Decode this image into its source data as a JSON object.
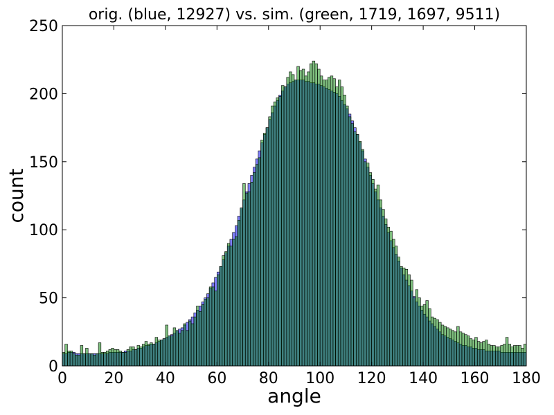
{
  "chart_data": {
    "type": "bar",
    "title": "orig. (blue, 12927) vs. sim. (green, 1719, 1697, 9511)",
    "xlabel": "angle",
    "ylabel": "count",
    "xlim": [
      0,
      180
    ],
    "ylim": [
      0,
      250
    ],
    "xticks": [
      "0",
      "20",
      "40",
      "60",
      "80",
      "100",
      "120",
      "140",
      "160",
      "180"
    ],
    "yticks": [
      "0",
      "50",
      "100",
      "150",
      "200",
      "250"
    ],
    "bin_width": 1,
    "bin_start": 0,
    "grid": false,
    "series": [
      {
        "color": "#0000ff",
        "values": [
          9,
          9,
          10,
          10,
          10,
          9,
          9,
          9,
          9,
          9,
          9,
          9,
          9,
          9,
          9,
          9,
          9,
          9,
          10,
          10,
          10,
          10,
          10,
          10,
          11,
          11,
          11,
          12,
          12,
          13,
          13,
          14,
          15,
          15,
          16,
          16,
          17,
          18,
          19,
          20,
          21,
          22,
          23,
          24,
          26,
          27,
          28,
          30,
          32,
          34,
          36,
          39,
          41,
          44,
          47,
          50,
          53,
          57,
          61,
          65,
          69,
          73,
          78,
          83,
          88,
          93,
          98,
          103,
          110,
          116,
          122,
          128,
          134,
          140,
          146,
          152,
          158,
          164,
          170,
          175,
          181,
          186,
          191,
          195,
          199,
          202,
          205,
          207,
          208,
          209,
          210,
          210,
          210,
          210,
          209,
          209,
          208,
          208,
          207,
          207,
          206,
          205,
          204,
          203,
          202,
          201,
          200,
          198,
          195,
          192,
          189,
          185,
          180,
          175,
          170,
          164,
          158,
          152,
          146,
          140,
          134,
          128,
          122,
          116,
          110,
          104,
          98,
          92,
          87,
          82,
          77,
          72,
          67,
          63,
          59,
          55,
          51,
          47,
          44,
          41,
          38,
          36,
          33,
          31,
          29,
          27,
          25,
          23,
          22,
          21,
          20,
          19,
          18,
          17,
          16,
          15,
          15,
          14,
          14,
          13,
          13,
          12,
          12,
          12,
          11,
          11,
          11,
          11,
          11,
          11,
          10,
          10,
          10,
          10,
          10,
          10,
          10,
          10,
          10,
          10
        ]
      },
      {
        "color": "#008000",
        "values": [
          10,
          16,
          11,
          11,
          9,
          8,
          8,
          15,
          9,
          13,
          9,
          9,
          8,
          9,
          17,
          10,
          10,
          11,
          12,
          13,
          12,
          12,
          11,
          10,
          10,
          12,
          14,
          14,
          12,
          15,
          14,
          16,
          18,
          16,
          17,
          16,
          21,
          19,
          19,
          20,
          30,
          22,
          22,
          28,
          26,
          24,
          26,
          31,
          26,
          33,
          31,
          36,
          44,
          40,
          45,
          49,
          50,
          58,
          58,
          55,
          67,
          73,
          81,
          84,
          90,
          88,
          93,
          95,
          107,
          116,
          134,
          127,
          128,
          135,
          142,
          148,
          153,
          166,
          171,
          175,
          183,
          191,
          194,
          197,
          198,
          206,
          205,
          212,
          216,
          214,
          210,
          220,
          217,
          218,
          213,
          216,
          222,
          224,
          222,
          218,
          213,
          210,
          210,
          212,
          213,
          211,
          205,
          210,
          205,
          199,
          191,
          183,
          178,
          172,
          170,
          165,
          159,
          150,
          149,
          142,
          137,
          130,
          133,
          122,
          115,
          108,
          102,
          99,
          93,
          88,
          80,
          73,
          72,
          71,
          67,
          63,
          50,
          56,
          50,
          44,
          45,
          48,
          42,
          36,
          35,
          34,
          32,
          30,
          29,
          28,
          27,
          26,
          25,
          29,
          25,
          24,
          23,
          22,
          20,
          19,
          21,
          18,
          17,
          18,
          19,
          16,
          15,
          15,
          14,
          14,
          15,
          16,
          21,
          16,
          14,
          15,
          15,
          15,
          13,
          16
        ]
      }
    ]
  }
}
